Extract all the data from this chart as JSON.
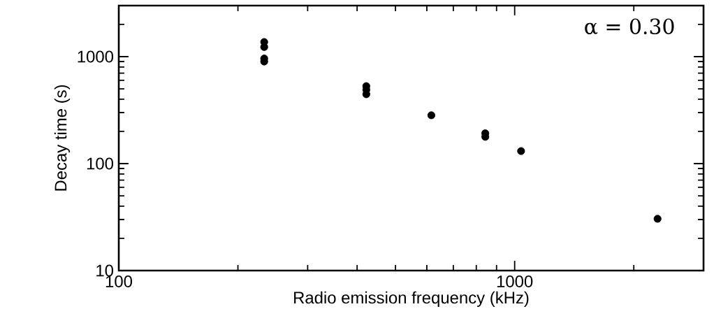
{
  "chart_data": {
    "type": "scatter",
    "xlabel": "Radio emission frequency (kHz)",
    "ylabel": "Decay time (s)",
    "x": [
      233,
      233,
      233,
      233,
      422,
      422,
      422,
      616,
      843,
      843,
      1038,
      2296
    ],
    "values": [
      1370,
      1230,
      960,
      900,
      530,
      490,
      445,
      283,
      192,
      178,
      131,
      30.5
    ],
    "color": "#000000",
    "marker": "circle",
    "log": "xy",
    "xlim": [
      100,
      3000
    ],
    "ylim": [
      10,
      3000
    ],
    "xticks": [
      100,
      1000
    ],
    "yticks": [
      10,
      100,
      1000
    ],
    "annotations": [
      "α = 0.30"
    ]
  }
}
